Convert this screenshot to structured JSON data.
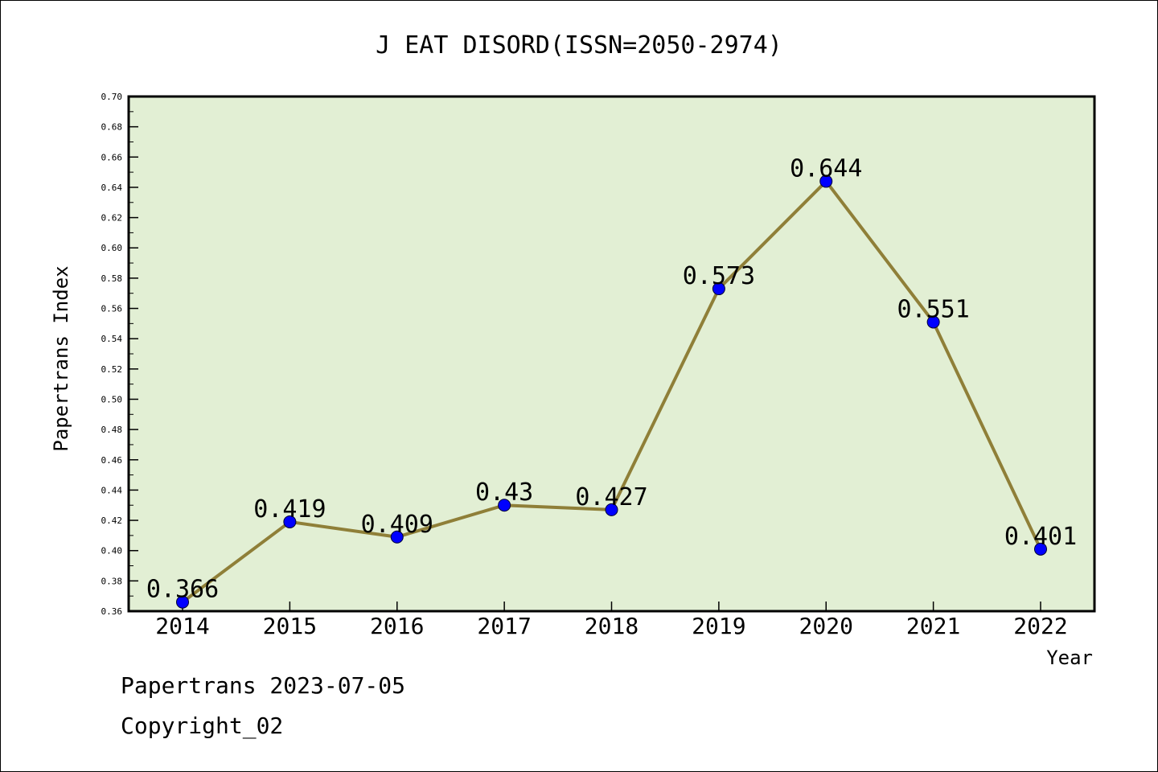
{
  "chart_data": {
    "type": "line",
    "title": "J EAT DISORD(ISSN=2050-2974)",
    "xlabel": "Year",
    "ylabel": "Papertrans Index",
    "categories": [
      "2014",
      "2015",
      "2016",
      "2017",
      "2018",
      "2019",
      "2020",
      "2021",
      "2022"
    ],
    "series": [
      {
        "values": [
          0.366,
          0.419,
          0.409,
          0.43,
          0.427,
          0.573,
          0.644,
          0.551,
          0.401
        ],
        "labels": [
          "0.366",
          "0.419",
          "0.409",
          "0.43",
          "0.427",
          "0.573",
          "0.644",
          "0.551",
          "0.401"
        ]
      }
    ],
    "ylim": [
      0.36,
      0.7
    ],
    "yticks": [
      "0.36",
      "0.38",
      "0.40",
      "0.42",
      "0.44",
      "0.46",
      "0.48",
      "0.50",
      "0.52",
      "0.54",
      "0.56",
      "0.58",
      "0.60",
      "0.62",
      "0.64",
      "0.66",
      "0.68",
      "0.70"
    ],
    "grid": false,
    "colors": {
      "plot_background": "#e2efd4",
      "line": "#8f7f38",
      "marker": "#0000ff"
    }
  },
  "footer": {
    "line1": "Papertrans 2023-07-05",
    "line2": "Copyright_02"
  }
}
